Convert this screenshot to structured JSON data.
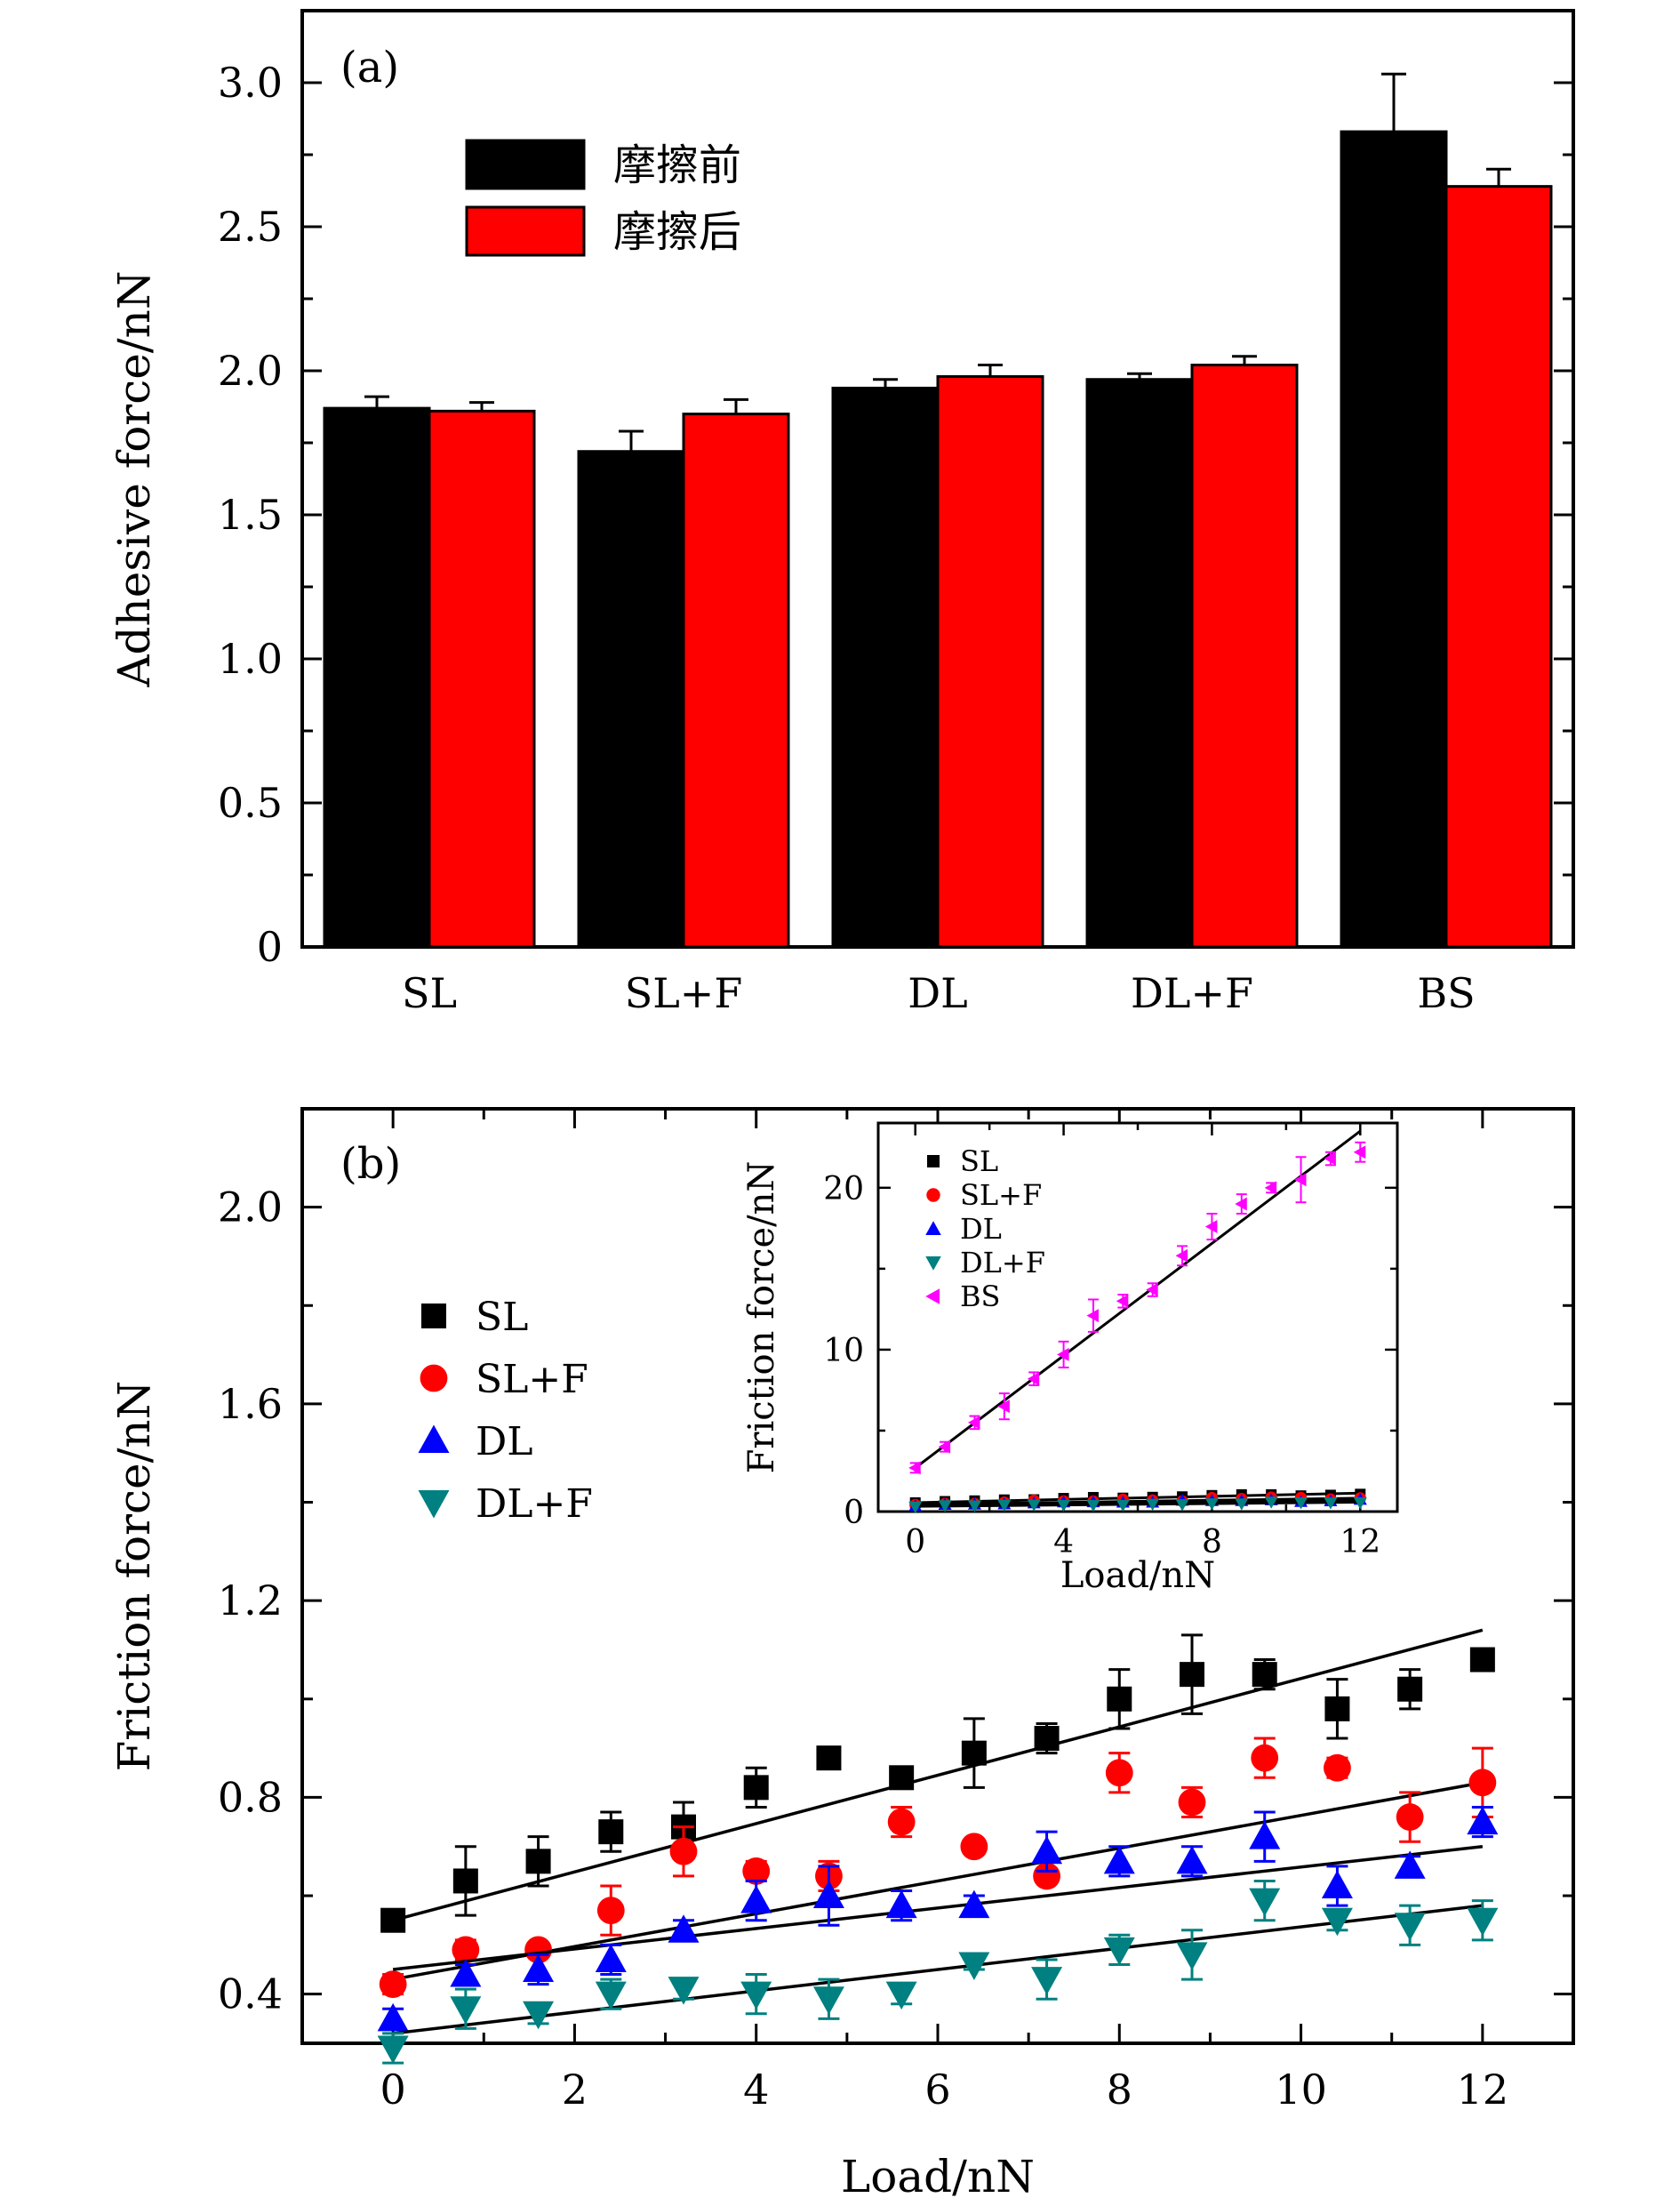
{
  "chart_data": [
    {
      "type": "bar",
      "panel_label": "(a)",
      "ylabel": "Adhesive force/nN",
      "xlabel": "",
      "ylim": [
        0,
        3.25
      ],
      "yticks": [
        0,
        0.5,
        1.0,
        1.5,
        2.0,
        2.5,
        3.0
      ],
      "ytick_labels": [
        "0",
        "0.5",
        "1.0",
        "1.5",
        "2.0",
        "2.5",
        "3.0"
      ],
      "categories": [
        "SL",
        "SL+F",
        "DL",
        "DL+F",
        "BS"
      ],
      "legend_position": "top-left",
      "series": [
        {
          "name": "摩擦前",
          "color": "#000000",
          "values": [
            1.87,
            1.72,
            1.94,
            1.97,
            2.83
          ],
          "errors": [
            0.04,
            0.07,
            0.03,
            0.02,
            0.2
          ]
        },
        {
          "name": "摩擦后",
          "color": "#ff0000",
          "values": [
            1.86,
            1.85,
            1.98,
            2.02,
            2.64
          ],
          "errors": [
            0.03,
            0.05,
            0.04,
            0.03,
            0.06
          ]
        }
      ]
    },
    {
      "type": "scatter",
      "panel_label": "(b)",
      "xlabel": "Load/nN",
      "ylabel": "Friction force/nN",
      "xlim": [
        -1,
        13
      ],
      "ylim": [
        0.3,
        2.2
      ],
      "xticks": [
        0,
        2,
        4,
        6,
        8,
        10,
        12
      ],
      "yticks": [
        0.4,
        0.8,
        1.2,
        1.6,
        2.0
      ],
      "ytick_labels": [
        "0.4",
        "0.8",
        "1.2",
        "1.6",
        "2.0"
      ],
      "legend_position": "left",
      "x": [
        0,
        0.8,
        1.6,
        2.4,
        3.2,
        4.0,
        4.8,
        5.6,
        6.4,
        7.2,
        8.0,
        8.8,
        9.6,
        10.4,
        11.2,
        12.0
      ],
      "series": [
        {
          "name": "SL",
          "marker": "square",
          "color": "#000000",
          "y": [
            0.55,
            0.63,
            0.67,
            0.73,
            0.74,
            0.82,
            0.88,
            0.84,
            0.89,
            0.92,
            1.0,
            1.05,
            1.05,
            0.98,
            1.02,
            1.08
          ],
          "errors": [
            0.01,
            0.07,
            0.05,
            0.04,
            0.05,
            0.04,
            0.01,
            0.01,
            0.07,
            0.03,
            0.06,
            0.08,
            0.03,
            0.06,
            0.04,
            0.01
          ],
          "fit": [
            0.55,
            1.14
          ]
        },
        {
          "name": "SL+F",
          "marker": "circle",
          "color": "#ff0000",
          "y": [
            0.42,
            0.49,
            0.49,
            0.57,
            0.69,
            0.65,
            0.64,
            0.75,
            0.7,
            0.64,
            0.85,
            0.79,
            0.88,
            0.86,
            0.76,
            0.83
          ],
          "errors": [
            0.02,
            0.02,
            0.01,
            0.05,
            0.05,
            0.02,
            0.03,
            0.03,
            0.01,
            0.01,
            0.04,
            0.03,
            0.04,
            0.02,
            0.05,
            0.07
          ],
          "fit": [
            0.43,
            0.83
          ]
        },
        {
          "name": "DL",
          "marker": "triangle-up",
          "color": "#0000ff",
          "y": [
            0.35,
            0.44,
            0.45,
            0.47,
            0.53,
            0.59,
            0.6,
            0.58,
            0.58,
            0.69,
            0.67,
            0.67,
            0.72,
            0.62,
            0.66,
            0.75
          ],
          "errors": [
            0.02,
            0.02,
            0.03,
            0.03,
            0.02,
            0.04,
            0.06,
            0.03,
            0.02,
            0.04,
            0.03,
            0.03,
            0.05,
            0.04,
            0.02,
            0.03
          ],
          "fit": [
            0.45,
            0.7
          ]
        },
        {
          "name": "DL+F",
          "marker": "triangle-down",
          "color": "#008080",
          "y": [
            0.29,
            0.37,
            0.36,
            0.4,
            0.41,
            0.4,
            0.39,
            0.4,
            0.46,
            0.43,
            0.49,
            0.48,
            0.59,
            0.55,
            0.54,
            0.55
          ],
          "errors": [
            0.03,
            0.04,
            0.02,
            0.03,
            0.02,
            0.04,
            0.04,
            0.02,
            0.01,
            0.04,
            0.03,
            0.05,
            0.04,
            0.02,
            0.04,
            0.04
          ],
          "fit": [
            0.32,
            0.58
          ]
        }
      ],
      "inset": {
        "type": "scatter",
        "xlabel": "Load/nN",
        "ylabel": "Friction force/nN",
        "xlim": [
          -1,
          13
        ],
        "ylim": [
          0,
          24
        ],
        "xticks": [
          0,
          4,
          8,
          12
        ],
        "yticks": [
          0,
          10,
          20
        ],
        "legend_position": "top-left",
        "x": [
          0,
          0.8,
          1.6,
          2.4,
          3.2,
          4.0,
          4.8,
          5.6,
          6.4,
          7.2,
          8.0,
          8.8,
          9.6,
          10.4,
          11.2,
          12.0
        ],
        "series": [
          {
            "name": "SL",
            "marker": "square",
            "color": "#000000",
            "y": [
              0.55,
              0.63,
              0.67,
              0.73,
              0.74,
              0.82,
              0.88,
              0.84,
              0.89,
              0.92,
              1.0,
              1.05,
              1.05,
              0.98,
              1.02,
              1.08
            ],
            "fit": [
              0.55,
              1.14
            ]
          },
          {
            "name": "SL+F",
            "marker": "circle",
            "color": "#ff0000",
            "y": [
              0.42,
              0.49,
              0.49,
              0.57,
              0.69,
              0.65,
              0.64,
              0.75,
              0.7,
              0.64,
              0.85,
              0.79,
              0.88,
              0.86,
              0.76,
              0.83
            ],
            "fit": [
              0.43,
              0.83
            ]
          },
          {
            "name": "DL",
            "marker": "triangle-up",
            "color": "#0000ff",
            "y": [
              0.35,
              0.44,
              0.45,
              0.47,
              0.53,
              0.59,
              0.6,
              0.58,
              0.58,
              0.69,
              0.67,
              0.67,
              0.72,
              0.62,
              0.66,
              0.75
            ],
            "fit": [
              0.45,
              0.7
            ]
          },
          {
            "name": "DL+F",
            "marker": "triangle-down",
            "color": "#008080",
            "y": [
              0.29,
              0.37,
              0.36,
              0.4,
              0.41,
              0.4,
              0.39,
              0.4,
              0.46,
              0.43,
              0.49,
              0.48,
              0.59,
              0.55,
              0.54,
              0.55
            ],
            "fit": [
              0.32,
              0.58
            ]
          },
          {
            "name": "BS",
            "marker": "triangle-left",
            "color": "#ff00ff",
            "y": [
              2.7,
              4.0,
              5.5,
              6.5,
              8.2,
              9.7,
              12.1,
              13.0,
              13.7,
              15.8,
              17.6,
              19.0,
              20.0,
              20.5,
              21.8,
              22.2
            ],
            "errors": [
              0.3,
              0.3,
              0.4,
              0.8,
              0.4,
              0.8,
              1.0,
              0.4,
              0.4,
              0.6,
              0.8,
              0.6,
              0.3,
              1.4,
              0.4,
              0.6
            ],
            "fit": [
              2.7,
              23.5
            ]
          }
        ]
      }
    }
  ]
}
